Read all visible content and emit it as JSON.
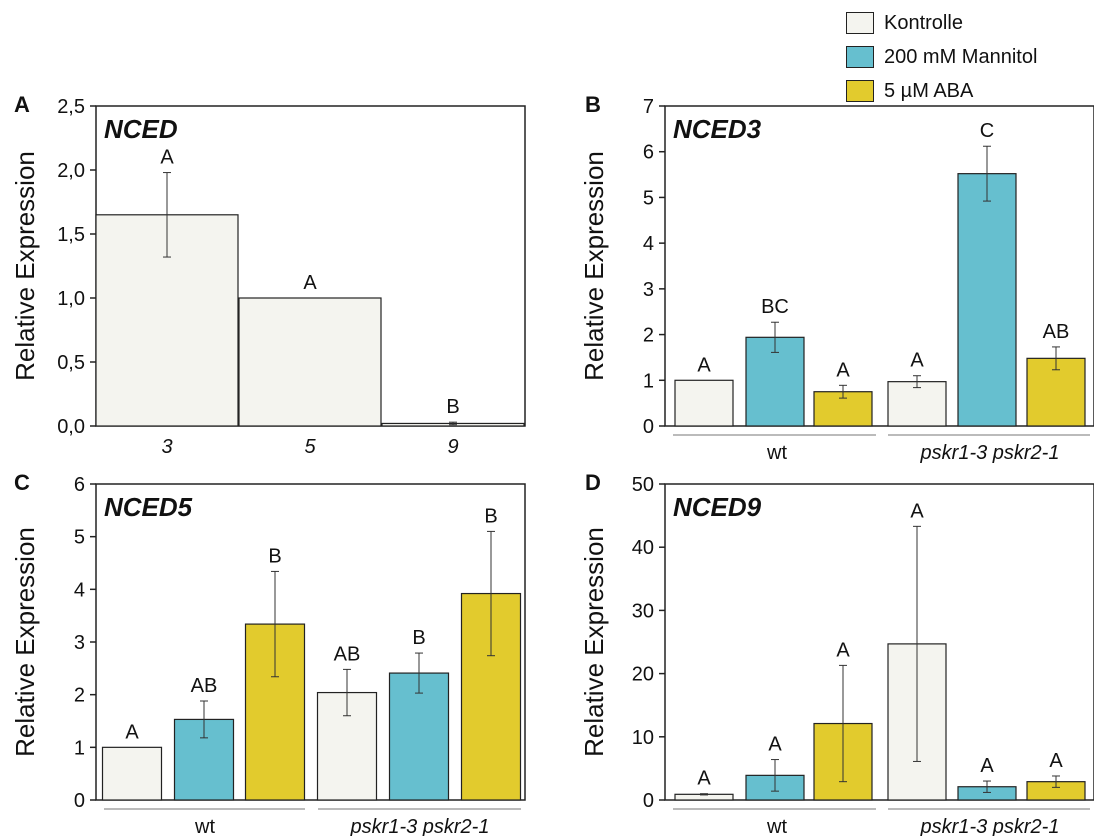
{
  "legend": {
    "items": [
      {
        "label": "Kontrolle",
        "color": "#f4f4ef"
      },
      {
        "label": "200 mM Mannitol",
        "color": "#66bfcf"
      },
      {
        "label": "5 µM ABA",
        "color": "#e2cb2d"
      }
    ]
  },
  "chart_data": [
    {
      "panel": "A",
      "type": "bar",
      "title": "NCED",
      "ylabel": "Relative Expression",
      "ylim": [
        0,
        2.5
      ],
      "yticks": [
        "0,0",
        "0,5",
        "1,0",
        "1,5",
        "2,0",
        "2,5"
      ],
      "categories": [
        "3",
        "5",
        "9"
      ],
      "series": [
        {
          "values": [
            1.65,
            1.0,
            0.02
          ],
          "errors": [
            0.33,
            0.0,
            0.01
          ],
          "letters": [
            "A",
            "A",
            "B"
          ]
        }
      ]
    },
    {
      "panel": "B",
      "type": "bar",
      "title": "NCED3",
      "ylabel": "Relative Expression",
      "ylim": [
        0,
        7
      ],
      "yticks": [
        "0",
        "1",
        "2",
        "3",
        "4",
        "5",
        "6",
        "7"
      ],
      "groups": [
        "wt",
        "pskr1-3 pskr2-1"
      ],
      "series": [
        {
          "name": "Kontrolle",
          "values": [
            1.0,
            0.97
          ],
          "errors": [
            0.0,
            0.13
          ],
          "letters": [
            "A",
            "A"
          ]
        },
        {
          "name": "200 mM Mannitol",
          "values": [
            1.94,
            5.52
          ],
          "errors": [
            0.33,
            0.6
          ],
          "letters": [
            "BC",
            "C"
          ]
        },
        {
          "name": "5 µM ABA",
          "values": [
            0.75,
            1.48
          ],
          "errors": [
            0.14,
            0.25
          ],
          "letters": [
            "A",
            "AB"
          ]
        }
      ]
    },
    {
      "panel": "C",
      "type": "bar",
      "title": "NCED5",
      "ylabel": "Relative Expression",
      "ylim": [
        0,
        6
      ],
      "yticks": [
        "0",
        "1",
        "2",
        "3",
        "4",
        "5",
        "6"
      ],
      "groups": [
        "wt",
        "pskr1-3 pskr2-1"
      ],
      "series": [
        {
          "name": "Kontrolle",
          "values": [
            1.0,
            2.04
          ],
          "errors": [
            0.0,
            0.44
          ],
          "letters": [
            "A",
            "AB"
          ]
        },
        {
          "name": "200 mM Mannitol",
          "values": [
            1.53,
            2.41
          ],
          "errors": [
            0.35,
            0.38
          ],
          "letters": [
            "AB",
            "B"
          ]
        },
        {
          "name": "5 µM ABA",
          "values": [
            3.34,
            3.92
          ],
          "errors": [
            1.0,
            1.18
          ],
          "letters": [
            "B",
            "B"
          ]
        }
      ]
    },
    {
      "panel": "D",
      "type": "bar",
      "title": "NCED9",
      "ylabel": "Relative Expression",
      "ylim": [
        0,
        50
      ],
      "yticks": [
        "0",
        "10",
        "20",
        "30",
        "40",
        "50"
      ],
      "groups": [
        "wt",
        "pskr1-3 pskr2-1"
      ],
      "series": [
        {
          "name": "Kontrolle",
          "values": [
            0.9,
            24.7
          ],
          "errors": [
            0.1,
            18.6
          ],
          "letters": [
            "A",
            "A"
          ]
        },
        {
          "name": "200 mM Mannitol",
          "values": [
            3.9,
            2.1
          ],
          "errors": [
            2.5,
            0.9
          ],
          "letters": [
            "A",
            "A"
          ]
        },
        {
          "name": "5 µM ABA",
          "values": [
            12.1,
            2.9
          ],
          "errors": [
            9.2,
            0.9
          ],
          "letters": [
            "A",
            "A"
          ]
        }
      ]
    }
  ]
}
